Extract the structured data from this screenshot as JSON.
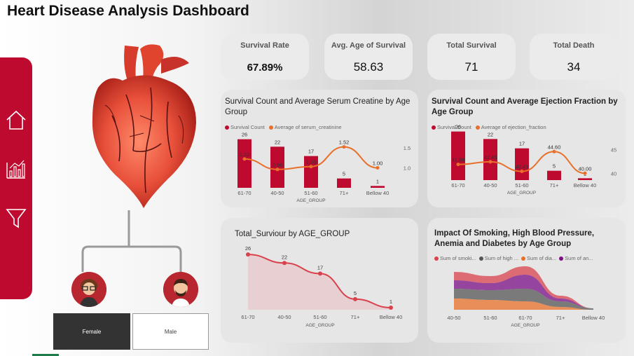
{
  "title": "Heart Disease Analysis Dashboard",
  "sidebar": {
    "icons": [
      "home-icon",
      "bar-chart-icon",
      "filter-icon"
    ]
  },
  "gender": {
    "female": "Female",
    "male": "Male"
  },
  "kpis": [
    {
      "label": "Survival Rate",
      "value": "67.89%"
    },
    {
      "label": "Avg. Age of Survival",
      "value": "58.63"
    },
    {
      "label": "Total Survival",
      "value": "71"
    },
    {
      "label": "Total Death",
      "value": "34"
    }
  ],
  "colors": {
    "accent": "#bf0a30",
    "orange": "#e8702a",
    "line_red": "#d9414d"
  },
  "chart_data": [
    {
      "type": "bar",
      "title": "Survival Count and Average Serum Creatine by Age Group",
      "legend": [
        "Survival Count",
        "Average of serum_creatinine"
      ],
      "categories": [
        "61-70",
        "40-50",
        "51-60",
        "71+",
        "Bellow 40"
      ],
      "xlabel": "AGE_GROUP",
      "series": [
        {
          "name": "Survival Count",
          "values": [
            26,
            22,
            17,
            5,
            1
          ]
        },
        {
          "name": "Average of serum_creatinine",
          "values": [
            1.22,
            0.96,
            1.03,
            1.52,
            1.0
          ]
        }
      ],
      "y2_ticks": [
        "1.5",
        "1.0"
      ],
      "y2lim": [
        0.8,
        1.6
      ]
    },
    {
      "type": "bar",
      "title": "Survival Count and Average Ejection Fraction by Age Group",
      "legend": [
        "Survival Count",
        "Average of ejection_fraction"
      ],
      "categories": [
        "61-70",
        "40-50",
        "51-60",
        "71+",
        "Bellow 40"
      ],
      "xlabel": "AGE_GROUP",
      "series": [
        {
          "name": "Survival Count",
          "values": [
            26,
            22,
            17,
            5,
            1
          ]
        },
        {
          "name": "Average of ejection_fraction",
          "values": [
            41.88,
            42.45,
            40.41,
            44.6,
            40.0
          ]
        }
      ],
      "y2_ticks": [
        "45",
        "40"
      ],
      "y2lim": [
        39,
        46
      ]
    },
    {
      "type": "area",
      "title": "Total_Surviour by AGE_GROUP",
      "categories": [
        "61-70",
        "40-50",
        "51-60",
        "71+",
        "Bellow 40"
      ],
      "xlabel": "AGE_GROUP",
      "series": [
        {
          "values": [
            26,
            22,
            17,
            5,
            1
          ]
        }
      ],
      "ylim": [
        0,
        30
      ]
    },
    {
      "type": "area",
      "title": "Impact Of Smoking, High Blood Pressure, Anemia and Diabetes by Age Group",
      "legend": [
        "Sum of smoki...",
        "Sum of high ...",
        "Sum of dia...",
        "Sum of an..."
      ],
      "categories": [
        "40-50",
        "51-60",
        "61-70",
        "71+",
        "Bellow 40"
      ],
      "xlabel": "AGE_GROUP",
      "series": [
        {
          "name": "Sum of smoki...",
          "values": [
            6,
            5,
            6,
            2,
            0
          ]
        },
        {
          "name": "Sum of high ...",
          "values": [
            7,
            7,
            9,
            4,
            1
          ]
        },
        {
          "name": "Sum of dia...",
          "values": [
            8,
            7,
            6,
            2,
            0
          ]
        },
        {
          "name": "Sum of an...",
          "values": [
            6,
            5,
            10,
            2,
            0
          ]
        }
      ]
    }
  ]
}
